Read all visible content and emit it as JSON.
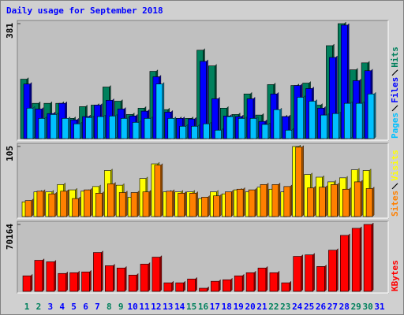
{
  "chart_data": [
    {
      "type": "bar3d",
      "title": "Daily usage for September 2018",
      "ylim": [
        0,
        381
      ],
      "yticks": [
        381
      ],
      "series": [
        {
          "name": "Hits",
          "color": "#00805c",
          "values": [
            197,
            117,
            117,
            117,
            67,
            106,
            111,
            171,
            124,
            80,
            101,
            223,
            96,
            67,
            67,
            293,
            241,
            101,
            80,
            148,
            78,
            179,
            73,
            176,
            184,
            111,
            308,
            381,
            228,
            251,
            null
          ]
        },
        {
          "name": "Files",
          "color": "#0000ff",
          "values": [
            181,
            98,
            83,
            117,
            62,
            73,
            111,
            127,
            98,
            75,
            91,
            205,
            88,
            67,
            65,
            256,
            132,
            75,
            73,
            132,
            57,
            148,
            73,
            176,
            166,
            101,
            269,
            376,
            192,
            225,
            null
          ]
        },
        {
          "name": "Pages",
          "color": "#00c0ff",
          "values": [
            101,
            67,
            80,
            67,
            49,
            70,
            73,
            75,
            67,
            54,
            67,
            181,
            67,
            41,
            41,
            49,
            28,
            73,
            67,
            67,
            47,
            96,
            28,
            137,
            124,
            78,
            83,
            117,
            117,
            148,
            null
          ]
        }
      ]
    },
    {
      "type": "bar3d",
      "ylim": [
        0,
        105
      ],
      "yticks": [
        105
      ],
      "series": [
        {
          "name": "Visits",
          "color": "#ffff00",
          "values": [
            22,
            37,
            37,
            48,
            40,
            38,
            45,
            69,
            47,
            29,
            57,
            79,
            37,
            37,
            37,
            27,
            37,
            34,
            40,
            37,
            44,
            41,
            37,
            105,
            63,
            59,
            52,
            58,
            70,
            69,
            null
          ]
        },
        {
          "name": "Sites",
          "color": "#ff8000",
          "values": [
            24,
            38,
            34,
            38,
            27,
            40,
            35,
            49,
            36,
            36,
            37,
            77,
            38,
            35,
            35,
            29,
            31,
            37,
            41,
            40,
            48,
            48,
            45,
            104,
            43,
            44,
            48,
            41,
            52,
            42,
            null
          ]
        }
      ]
    },
    {
      "type": "bar3d",
      "ylim": [
        0,
        70164
      ],
      "yticks": [
        70164
      ],
      "categories": [
        "1",
        "2",
        "3",
        "4",
        "5",
        "6",
        "7",
        "8",
        "9",
        "10",
        "11",
        "12",
        "13",
        "14",
        "15",
        "16",
        "17",
        "18",
        "19",
        "20",
        "21",
        "22",
        "23",
        "24",
        "25",
        "26",
        "27",
        "28",
        "29",
        "30",
        "31"
      ],
      "tick_colors": [
        "#00805c",
        "#00805c",
        "#0000ff",
        "#0000ff",
        "#0000ff",
        "#0000ff",
        "#0000ff",
        "#00805c",
        "#00805c",
        "#0000ff",
        "#0000ff",
        "#0000ff",
        "#0000ff",
        "#0000ff",
        "#00805c",
        "#00805c",
        "#0000ff",
        "#0000ff",
        "#0000ff",
        "#0000ff",
        "#0000ff",
        "#00805c",
        "#00805c",
        "#0000ff",
        "#0000ff",
        "#0000ff",
        "#0000ff",
        "#0000ff",
        "#00805c",
        "#00805c",
        "#0000ff"
      ],
      "series": [
        {
          "name": "KBytes",
          "color": "#ff0000",
          "values": [
            16300,
            32600,
            31000,
            18800,
            19600,
            20400,
            40800,
            26900,
            24500,
            17100,
            28600,
            35900,
            9000,
            9000,
            13000,
            3300,
            10600,
            12200,
            16300,
            19600,
            24500,
            19600,
            9000,
            36700,
            38300,
            26100,
            43200,
            58700,
            66100,
            70164,
            null
          ]
        }
      ]
    }
  ]
}
